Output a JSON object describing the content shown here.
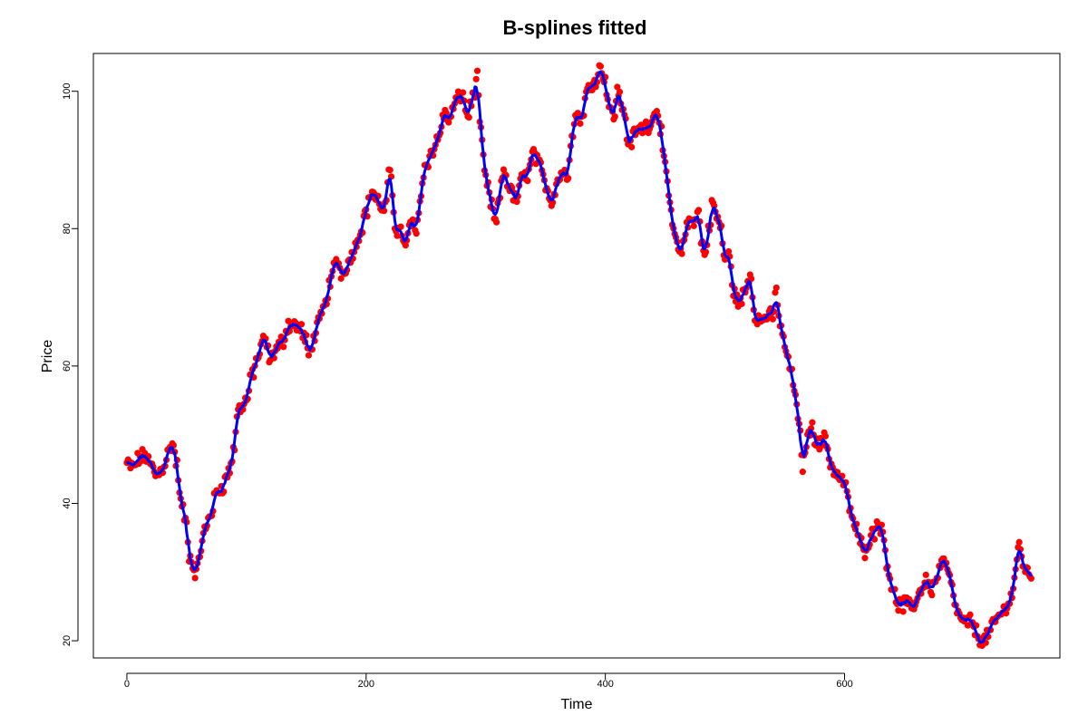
{
  "chart_data": {
    "type": "line",
    "title": "B-splines fitted",
    "xlabel": "Time",
    "ylabel": "Price",
    "xlim": [
      -28,
      780
    ],
    "ylim": [
      17.5,
      105.5
    ],
    "xticks": [
      0,
      200,
      400,
      600
    ],
    "yticks": [
      20,
      40,
      60,
      80,
      100
    ],
    "grid": false,
    "legend": "none",
    "colors": {
      "points": "#ff0000",
      "spline": "#0000ff"
    },
    "series": [
      {
        "type": "scatter",
        "keypoints": [
          [
            0,
            45.8
          ],
          [
            5,
            45.2
          ],
          [
            10,
            46.5
          ],
          [
            15,
            47.0
          ],
          [
            20,
            45.5
          ],
          [
            25,
            44.0
          ],
          [
            30,
            45.2
          ],
          [
            35,
            47.5
          ],
          [
            38,
            48.8
          ],
          [
            42,
            45.5
          ],
          [
            45,
            40.0
          ],
          [
            50,
            37.0
          ],
          [
            52,
            32.5
          ],
          [
            56,
            30.5
          ],
          [
            58,
            29.8
          ],
          [
            62,
            33.5
          ],
          [
            65,
            36.0
          ],
          [
            70,
            38.5
          ],
          [
            75,
            41.5
          ],
          [
            80,
            42.5
          ],
          [
            85,
            44.5
          ],
          [
            90,
            48.0
          ],
          [
            92,
            53.0
          ],
          [
            95,
            54.0
          ],
          [
            100,
            55.0
          ],
          [
            105,
            59.0
          ],
          [
            110,
            61.5
          ],
          [
            115,
            64.0
          ],
          [
            120,
            61.0
          ],
          [
            125,
            62.5
          ],
          [
            130,
            63.5
          ],
          [
            135,
            66.0
          ],
          [
            140,
            66.0
          ],
          [
            145,
            65.5
          ],
          [
            150,
            63.5
          ],
          [
            152,
            61.5
          ],
          [
            155,
            63.5
          ],
          [
            160,
            66.0
          ],
          [
            165,
            68.5
          ],
          [
            170,
            72.0
          ],
          [
            175,
            75.5
          ],
          [
            180,
            73.5
          ],
          [
            185,
            75.0
          ],
          [
            190,
            77.0
          ],
          [
            195,
            79.5
          ],
          [
            200,
            82.5
          ],
          [
            205,
            85.5
          ],
          [
            210,
            84.0
          ],
          [
            215,
            82.5
          ],
          [
            220,
            88.0
          ],
          [
            225,
            80.0
          ],
          [
            230,
            79.5
          ],
          [
            233,
            77.0
          ],
          [
            237,
            81.0
          ],
          [
            242,
            79.5
          ],
          [
            245,
            84.5
          ],
          [
            250,
            89.5
          ],
          [
            255,
            91.0
          ],
          [
            260,
            93.0
          ],
          [
            265,
            96.5
          ],
          [
            270,
            96.0
          ],
          [
            275,
            98.5
          ],
          [
            280,
            99.5
          ],
          [
            285,
            96.5
          ],
          [
            290,
            99.5
          ],
          [
            293,
            102.0
          ],
          [
            296,
            93.5
          ],
          [
            300,
            87.0
          ],
          [
            305,
            83.5
          ],
          [
            308,
            80.5
          ],
          [
            312,
            85.0
          ],
          [
            315,
            88.5
          ],
          [
            320,
            86.0
          ],
          [
            325,
            84.0
          ],
          [
            330,
            87.0
          ],
          [
            335,
            88.0
          ],
          [
            340,
            91.0
          ],
          [
            345,
            89.0
          ],
          [
            350,
            86.5
          ],
          [
            355,
            84.0
          ],
          [
            360,
            87.0
          ],
          [
            365,
            88.5
          ],
          [
            368,
            87.0
          ],
          [
            372,
            94.0
          ],
          [
            376,
            96.5
          ],
          [
            380,
            96.0
          ],
          [
            385,
            100.0
          ],
          [
            390,
            101.5
          ],
          [
            393,
            102.0
          ],
          [
            396,
            103.5
          ],
          [
            400,
            101.5
          ],
          [
            403,
            98.0
          ],
          [
            407,
            96.0
          ],
          [
            410,
            100.0
          ],
          [
            415,
            97.5
          ],
          [
            420,
            92.0
          ],
          [
            425,
            94.0
          ],
          [
            430,
            94.5
          ],
          [
            435,
            95.0
          ],
          [
            440,
            96.0
          ],
          [
            443,
            97.5
          ],
          [
            446,
            95.0
          ],
          [
            450,
            88.5
          ],
          [
            454,
            84.0
          ],
          [
            457,
            79.5
          ],
          [
            460,
            77.5
          ],
          [
            463,
            76.0
          ],
          [
            466,
            79.0
          ],
          [
            470,
            81.0
          ],
          [
            475,
            81.5
          ],
          [
            478,
            82.5
          ],
          [
            480,
            78.5
          ],
          [
            483,
            76.0
          ],
          [
            487,
            80.5
          ],
          [
            490,
            84.0
          ],
          [
            493,
            81.5
          ],
          [
            496,
            80.5
          ],
          [
            500,
            75.5
          ],
          [
            503,
            76.0
          ],
          [
            508,
            70.5
          ],
          [
            512,
            69.0
          ],
          [
            517,
            71.0
          ],
          [
            521,
            73.5
          ],
          [
            525,
            67.5
          ],
          [
            530,
            66.5
          ],
          [
            535,
            67.5
          ],
          [
            540,
            67.0
          ],
          [
            543,
            71.0
          ],
          [
            546,
            66.0
          ],
          [
            550,
            63.0
          ],
          [
            554,
            60.0
          ],
          [
            558,
            57.0
          ],
          [
            562,
            51.0
          ],
          [
            565,
            45.5
          ],
          [
            568,
            49.0
          ],
          [
            572,
            51.0
          ],
          [
            576,
            49.5
          ],
          [
            580,
            48.5
          ],
          [
            584,
            49.5
          ],
          [
            588,
            46.0
          ],
          [
            592,
            44.5
          ],
          [
            597,
            43.5
          ],
          [
            600,
            43.0
          ],
          [
            604,
            39.5
          ],
          [
            608,
            37.0
          ],
          [
            612,
            35.0
          ],
          [
            616,
            33.0
          ],
          [
            620,
            34.5
          ],
          [
            624,
            35.5
          ],
          [
            628,
            37.5
          ],
          [
            632,
            35.5
          ],
          [
            636,
            31.0
          ],
          [
            640,
            27.5
          ],
          [
            644,
            25.5
          ],
          [
            648,
            25.0
          ],
          [
            652,
            25.5
          ],
          [
            656,
            24.5
          ],
          [
            660,
            26.0
          ],
          [
            664,
            27.5
          ],
          [
            668,
            29.0
          ],
          [
            672,
            27.5
          ],
          [
            676,
            28.5
          ],
          [
            680,
            31.0
          ],
          [
            684,
            31.5
          ],
          [
            688,
            29.0
          ],
          [
            692,
            25.5
          ],
          [
            696,
            23.5
          ],
          [
            700,
            22.5
          ],
          [
            704,
            23.0
          ],
          [
            708,
            22.0
          ],
          [
            712,
            20.5
          ],
          [
            716,
            19.8
          ],
          [
            720,
            21.0
          ],
          [
            724,
            22.0
          ],
          [
            728,
            23.5
          ],
          [
            732,
            24.0
          ],
          [
            736,
            25.5
          ],
          [
            740,
            26.5
          ],
          [
            743,
            30.5
          ],
          [
            746,
            34.0
          ],
          [
            749,
            31.5
          ],
          [
            752,
            30.0
          ],
          [
            756,
            29.5
          ]
        ]
      },
      {
        "type": "line",
        "source": "smoothed keypoints of the scatter series"
      }
    ]
  }
}
